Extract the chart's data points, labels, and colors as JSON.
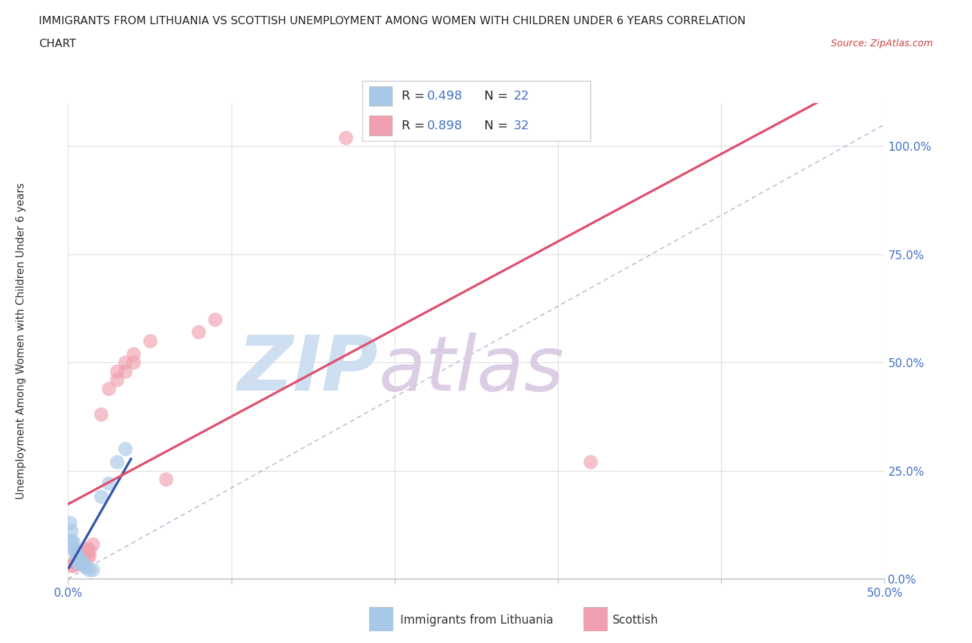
{
  "title_line1": "IMMIGRANTS FROM LITHUANIA VS SCOTTISH UNEMPLOYMENT AMONG WOMEN WITH CHILDREN UNDER 6 YEARS CORRELATION",
  "title_line2": "CHART",
  "source": "Source: ZipAtlas.com",
  "ylabel": "Unemployment Among Women with Children Under 6 years",
  "xlabel_blue": "Immigrants from Lithuania",
  "xlabel_pink": "Scottish",
  "legend_blue_R": "0.498",
  "legend_blue_N": "22",
  "legend_pink_R": "0.898",
  "legend_pink_N": "32",
  "watermark_zip": "ZIP",
  "watermark_atlas": "atlas",
  "blue_scatter": [
    [
      0.001,
      0.13
    ],
    [
      0.002,
      0.11
    ],
    [
      0.002,
      0.09
    ],
    [
      0.003,
      0.085
    ],
    [
      0.003,
      0.07
    ],
    [
      0.004,
      0.065
    ],
    [
      0.005,
      0.06
    ],
    [
      0.005,
      0.055
    ],
    [
      0.006,
      0.05
    ],
    [
      0.006,
      0.04
    ],
    [
      0.007,
      0.045
    ],
    [
      0.007,
      0.035
    ],
    [
      0.008,
      0.04
    ],
    [
      0.009,
      0.035
    ],
    [
      0.01,
      0.03
    ],
    [
      0.011,
      0.025
    ],
    [
      0.013,
      0.02
    ],
    [
      0.015,
      0.02
    ],
    [
      0.02,
      0.19
    ],
    [
      0.025,
      0.22
    ],
    [
      0.03,
      0.27
    ],
    [
      0.035,
      0.3
    ]
  ],
  "pink_scatter": [
    [
      0.002,
      0.03
    ],
    [
      0.003,
      0.03
    ],
    [
      0.004,
      0.04
    ],
    [
      0.005,
      0.04
    ],
    [
      0.006,
      0.035
    ],
    [
      0.007,
      0.04
    ],
    [
      0.007,
      0.045
    ],
    [
      0.008,
      0.05
    ],
    [
      0.008,
      0.045
    ],
    [
      0.009,
      0.05
    ],
    [
      0.01,
      0.055
    ],
    [
      0.01,
      0.06
    ],
    [
      0.011,
      0.065
    ],
    [
      0.012,
      0.07
    ],
    [
      0.012,
      0.05
    ],
    [
      0.013,
      0.055
    ],
    [
      0.013,
      0.065
    ],
    [
      0.015,
      0.08
    ],
    [
      0.02,
      0.38
    ],
    [
      0.025,
      0.44
    ],
    [
      0.03,
      0.46
    ],
    [
      0.03,
      0.48
    ],
    [
      0.035,
      0.48
    ],
    [
      0.035,
      0.5
    ],
    [
      0.04,
      0.52
    ],
    [
      0.04,
      0.5
    ],
    [
      0.05,
      0.55
    ],
    [
      0.06,
      0.23
    ],
    [
      0.08,
      0.57
    ],
    [
      0.09,
      0.6
    ],
    [
      0.17,
      1.02
    ],
    [
      0.32,
      0.27
    ]
  ],
  "xlim": [
    0.0,
    0.5
  ],
  "ylim": [
    0.0,
    1.1
  ],
  "xticks": [
    0.0,
    0.1,
    0.2,
    0.3,
    0.4,
    0.5
  ],
  "xtick_labels": [
    "0.0%",
    "",
    "",
    "",
    "",
    "50.0%"
  ],
  "yticks": [
    0.0,
    0.25,
    0.5,
    0.75,
    1.0
  ],
  "ytick_labels_right": [
    "0.0%",
    "25.0%",
    "50.0%",
    "75.0%",
    "100.0%"
  ],
  "blue_color": "#A8C8E8",
  "blue_line_color": "#3355AA",
  "pink_color": "#F0A0B0",
  "pink_line_color": "#E05070",
  "dashed_color": "#AAAACC",
  "grid_color": "#DDDDDD",
  "bg_color": "#FFFFFF",
  "title_color": "#222222",
  "source_color": "#CC4444",
  "axis_label_color": "#4472C4",
  "watermark_color_zip": "#C8DCEF",
  "watermark_color_atlas": "#D8C8E0"
}
